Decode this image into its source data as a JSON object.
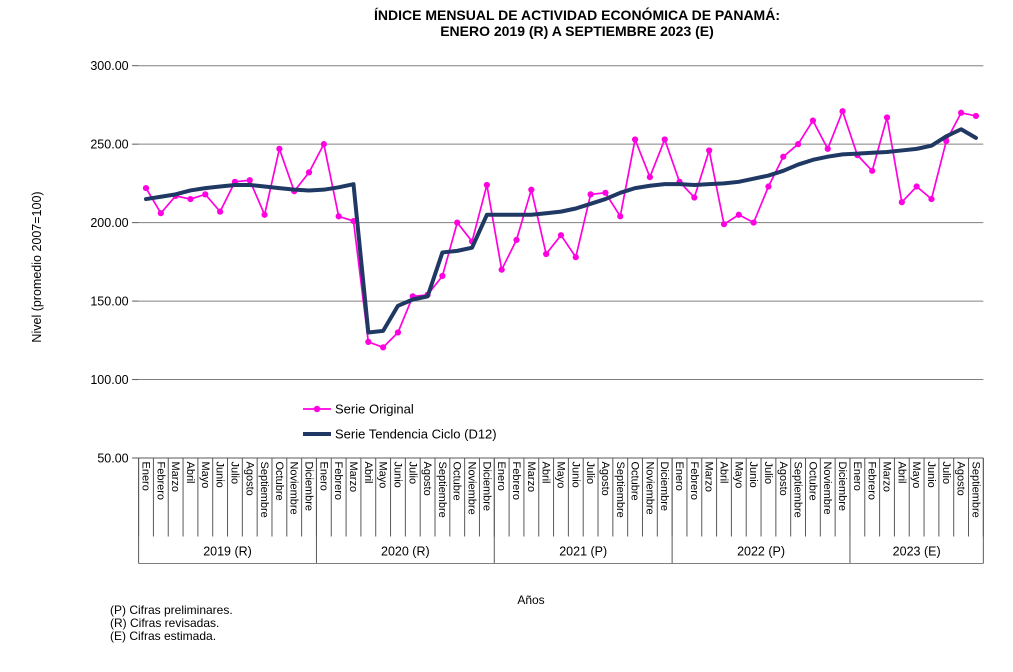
{
  "title": {
    "line1": "ÍNDICE MENSUAL DE ACTIVIDAD ECONÓMICA DE PANAMÁ:",
    "line2": "ENERO 2019 (R) A SEPTIEMBRE 2023 (E)"
  },
  "y_axis": {
    "title": "Nivel (promedio 2007=100)",
    "tick_labels": [
      "300.00",
      "250.00",
      "200.00",
      "150.00",
      "100.00",
      "50.00"
    ]
  },
  "x_axis": {
    "title": "Años",
    "year_groups": [
      {
        "label": "2019 (R)",
        "months": 12
      },
      {
        "label": "2020 (R)",
        "months": 12
      },
      {
        "label": "2021 (P)",
        "months": 12
      },
      {
        "label": "2022 (P)",
        "months": 12
      },
      {
        "label": "2023 (E)",
        "months": 9
      }
    ]
  },
  "footnotes": [
    "(P) Cifras preliminares.",
    "(R) Cifras revisadas.",
    "(E) Cifras estimada."
  ],
  "colors": {
    "serie_original": "#FF00E0",
    "serie_tendencia": "#1F3864",
    "gridline": "#808080",
    "axis_table": "#595959",
    "text": "#000000"
  },
  "chart_data": {
    "type": "line",
    "title": "ÍNDICE MENSUAL DE ACTIVIDAD ECONÓMICA DE PANAMÁ: ENERO 2019 (R) A SEPTIEMBRE 2023 (E)",
    "xlabel": "Años",
    "ylabel": "Nivel (promedio 2007=100)",
    "ylim": [
      50,
      300
    ],
    "y_ticks": [
      300,
      250,
      200,
      150,
      100,
      50
    ],
    "grid": "horizontal",
    "legend_position": "inside-bottom-center",
    "categories": [
      "Enero",
      "Febrero",
      "Marzo",
      "Abril",
      "Mayo",
      "Junio",
      "Julio",
      "Agosto",
      "Septiembre",
      "Octubre",
      "Noviembre",
      "Diciembre",
      "Enero",
      "Febrero",
      "Marzo",
      "Abril",
      "Mayo",
      "Junio",
      "Julio",
      "Agosto",
      "Septiembre",
      "Octubre",
      "Noviembre",
      "Diciembre",
      "Enero",
      "Febrero",
      "Marzo",
      "Abril",
      "Mayo",
      "Junio",
      "Julio",
      "Agosto",
      "Septiembre",
      "Octubre",
      "Noviembre",
      "Diciembre",
      "Enero",
      "Febrero",
      "Marzo",
      "Abril",
      "Mayo",
      "Junio",
      "Julio",
      "Agosto",
      "Septiembre",
      "Octubre",
      "Noviembre",
      "Diciembre",
      "Enero",
      "Febrero",
      "Marzo",
      "Abril",
      "Mayo",
      "Junio",
      "Julio",
      "Agosto",
      "Septiembre"
    ],
    "series": [
      {
        "name": "Serie Original",
        "color": "#FF00E0",
        "marker": "circle",
        "values": [
          222,
          206,
          217,
          215,
          218,
          207,
          226,
          227,
          205,
          247,
          220,
          232,
          250,
          204,
          201,
          124,
          120.5,
          130,
          153,
          154,
          166,
          200,
          188,
          224,
          170,
          189,
          221,
          180,
          192,
          178,
          218,
          219,
          204,
          253,
          229,
          253,
          226,
          216,
          246,
          199,
          205,
          200,
          223,
          242,
          250,
          265,
          247,
          271,
          243,
          233,
          267,
          213,
          223,
          215,
          252,
          270,
          268
        ]
      },
      {
        "name": "Serie Tendencia Ciclo (D12)",
        "color": "#1F3864",
        "marker": "none",
        "values": [
          215,
          216.5,
          218,
          220.5,
          222,
          223,
          224,
          224,
          223,
          222,
          221,
          220.5,
          221,
          222.5,
          224.5,
          130,
          131,
          147,
          151,
          153,
          181,
          182,
          184,
          205,
          205,
          205,
          205,
          206,
          207,
          209,
          212,
          215,
          219,
          222,
          223.5,
          224.5,
          224.5,
          224,
          224.5,
          225,
          226,
          228,
          230,
          233,
          237,
          240,
          242,
          243.5,
          244,
          244.5,
          245,
          246,
          247,
          249,
          255,
          259.5,
          254
        ]
      }
    ]
  }
}
